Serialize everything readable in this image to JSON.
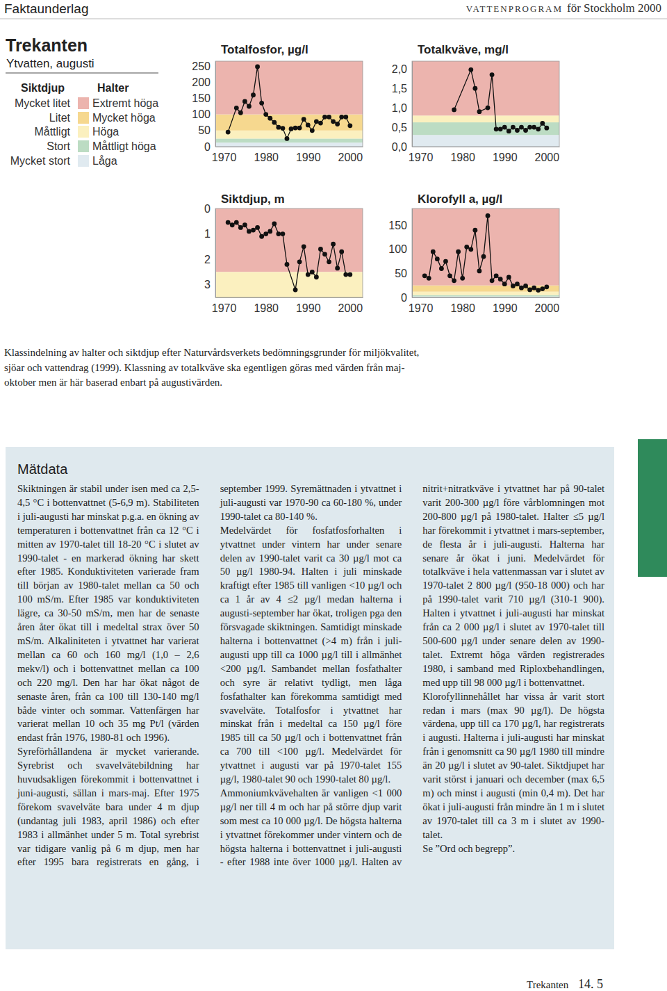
{
  "header": {
    "left": "Faktaunderlag",
    "right_caps": "VATTENPROGRAM",
    "right_rest": "för Stockholm 2000"
  },
  "title": "Trekanten",
  "subtitle": "Ytvatten, augusti",
  "legend": {
    "siktdjup_title": "Siktdjup",
    "halter_title": "Halter",
    "siktdjup": [
      "Mycket litet",
      "Litet",
      "Måttligt",
      "Stort",
      "Mycket stort"
    ],
    "halter": [
      "Extremt höga",
      "Mycket höga",
      "Höga",
      "Måttligt höga",
      "Låga"
    ],
    "colors": [
      "#ecb4ae",
      "#f6d88f",
      "#fbf0bf",
      "#bcdcc3",
      "#e0eaf0"
    ]
  },
  "chart_data": [
    {
      "type": "line",
      "title": "Totalfosfor, µg/l",
      "color": "#111111",
      "marker": "circle",
      "x": [
        1971,
        1973,
        1974,
        1975,
        1976,
        1977,
        1978,
        1979,
        1980,
        1981,
        1982,
        1983,
        1984,
        1985,
        1986,
        1987,
        1988,
        1989,
        1990,
        1991,
        1992,
        1993,
        1994,
        1995,
        1996,
        1997,
        1998,
        1999,
        2000
      ],
      "values": [
        45,
        120,
        105,
        140,
        125,
        160,
        248,
        135,
        100,
        88,
        75,
        60,
        57,
        25,
        55,
        58,
        58,
        85,
        67,
        50,
        78,
        73,
        92,
        92,
        78,
        70,
        92,
        92,
        65
      ],
      "xlim": [
        1968,
        2003
      ],
      "xticks": [
        1970,
        1980,
        1990,
        2000
      ],
      "ylim": [
        0,
        265
      ],
      "yticks": [
        0,
        50,
        100,
        150,
        200,
        250
      ],
      "band_limits": [
        12.5,
        25,
        50,
        100
      ],
      "band_colors": [
        "#e0eaf0",
        "#bcdcc3",
        "#fbf0bf",
        "#f6d88f",
        "#ecb4ae"
      ]
    },
    {
      "type": "line",
      "title": "Totalkväve, mg/l",
      "color": "#111111",
      "marker": "circle",
      "x": [
        1978,
        1982,
        1983,
        1984,
        1986,
        1987,
        1988,
        1989,
        1990,
        1991,
        1992,
        1993,
        1994,
        1995,
        1996,
        1997,
        1998,
        1999,
        2000
      ],
      "values": [
        0.95,
        1.98,
        1.5,
        0.9,
        1.0,
        1.85,
        0.45,
        0.45,
        0.5,
        0.4,
        0.5,
        0.42,
        0.5,
        0.42,
        0.5,
        0.5,
        0.45,
        0.6,
        0.48
      ],
      "xlim": [
        1968,
        2003
      ],
      "xticks": [
        1970,
        1980,
        1990,
        2000
      ],
      "ylim": [
        0,
        2.2
      ],
      "yticks": [
        {
          "value": 0,
          "label": "0,0"
        },
        {
          "value": 0.5,
          "label": "0,5"
        },
        {
          "value": 1,
          "label": "1,0"
        },
        {
          "value": 1.5,
          "label": "1,5"
        },
        {
          "value": 2,
          "label": "2,0"
        }
      ],
      "band_limits": [
        0.3,
        0.625,
        0.8
      ],
      "band_colors": [
        "#e0eaf0",
        "#bcdcc3",
        "#fbf0bf",
        "#ecb4ae"
      ]
    },
    {
      "type": "line",
      "title": "Siktdjup, m",
      "color": "#111111",
      "marker": "circle",
      "x": [
        1971,
        1972,
        1973,
        1974,
        1975,
        1976,
        1977,
        1978,
        1979,
        1980,
        1981,
        1982,
        1983,
        1984,
        1985,
        1987,
        1988,
        1989,
        1990,
        1991,
        1992,
        1993,
        1994,
        1995,
        1996,
        1997,
        1998,
        1999,
        2000
      ],
      "values": [
        0.55,
        0.65,
        0.55,
        0.75,
        0.65,
        0.9,
        0.85,
        0.75,
        1.1,
        1.0,
        0.9,
        0.6,
        1.0,
        1.0,
        2.2,
        3.2,
        2.1,
        1.5,
        2.6,
        2.5,
        2.7,
        1.6,
        1.8,
        2.1,
        1.4,
        2.35,
        1.7,
        2.6,
        2.6
      ],
      "xlim": [
        1968,
        2003
      ],
      "xticks": [
        1970,
        1980,
        1990,
        2000
      ],
      "ylim": [
        3.5,
        0
      ],
      "yticks": [
        0,
        1,
        2,
        3
      ],
      "band_limits": [
        2.5
      ],
      "band_colors": [
        "#ecb4ae",
        "#fbf0bf"
      ]
    },
    {
      "type": "line",
      "title": "Klorofyll a, µg/l",
      "color": "#111111",
      "marker": "circle",
      "x": [
        1971,
        1972,
        1973,
        1974,
        1975,
        1976,
        1977,
        1978,
        1979,
        1980,
        1981,
        1982,
        1983,
        1984,
        1985,
        1986,
        1987,
        1988,
        1989,
        1990,
        1991,
        1992,
        1993,
        1994,
        1995,
        1996,
        1997,
        1998,
        1999,
        2000
      ],
      "values": [
        45,
        40,
        95,
        80,
        60,
        75,
        45,
        35,
        95,
        40,
        105,
        100,
        140,
        55,
        85,
        170,
        35,
        45,
        38,
        28,
        42,
        24,
        28,
        20,
        24,
        16,
        20,
        15,
        18,
        22
      ],
      "xlim": [
        1968,
        2003
      ],
      "xticks": [
        1970,
        1980,
        1990,
        2000
      ],
      "ylim": [
        0,
        185
      ],
      "yticks": [
        0,
        50,
        100,
        150
      ],
      "band_limits": [
        2,
        5,
        12,
        25
      ],
      "band_colors": [
        "#e0eaf0",
        "#bcdcc3",
        "#fbf0bf",
        "#f6d88f",
        "#ecb4ae"
      ]
    }
  ],
  "caption": [
    "Klassindelning av halter och siktdjup efter Naturvårdsverkets bedömningsgrunder för miljökvalitet,",
    "sjöar och vattendrag (1999). Klassning av totalkväve ska egentligen göras med värden från maj-",
    "oktober men är här baserad enbart på augustivärden."
  ],
  "text": {
    "heading": "Mätdata",
    "paragraphs": [
      "Skiktningen är stabil under isen med ca 2,5-4,5 °C i bottenvattnet (5-6,9 m). Stabiliteten i juli-augusti har minskat p.g.a. en ökning av temperaturen i bottenvattnet från ca 12 °C i mitten av 1970-talet till 18-20 °C i slutet av 1990-talet - en markerad ökning har skett efter 1985. Konduktiviteten varierade fram till början av 1980-talet mellan ca 50 och 100 mS/m. Efter 1985 var konduktiviteten lägre, ca 30-50 mS/m, men har de senaste åren åter ökat till i medeltal strax över 50 mS/m. Alkaliniteten i ytvattnet har varierat mellan ca 60 och 160 mg/l (1,0 – 2,6 mekv/l) och i bottenvattnet mellan ca 100 och 220 mg/l. Den har har ökat något de senaste åren, från ca 100 till 130-140 mg/l både vinter och sommar. Vattenfärgen har varierat mellan 10 och 35 mg Pt/l (värden endast från 1976, 1980-81 och 1996).",
      "Syreförhållandena är mycket varierande. Syrebrist och svavelvätebildning har huvudsakligen förekommit i bottenvattnet i juni-augusti, sällan i mars-maj. Efter 1975 förekom svavelväte bara under 4 m djup (undantag juli 1983, april 1986) och efter 1983 i allmänhet under 5 m. Total syrebrist var tidigare vanlig på 6 m djup, men har efter 1995 bara registrerats en gång, i september 1999. Syremättnaden i ytvattnet i juli-augusti var 1970-90 ca 60-180 %, under 1990-talet ca 80-140 %.",
      "Medelvärdet för fosfatfosforhalten i ytvattnet under vintern har under senare delen av 1990-talet varit ca 30 µg/l mot ca 50 µg/l 1980-94. Halten i juli minskade kraftigt efter 1985 till vanligen <10 µg/l och ca 1 år av 4 ≤2 µg/l medan halterna i augusti-september har ökat, troligen pga den försvagade skiktningen. Samtidigt minskade halterna i bottenvattnet (>4 m) från i juli-augusti upp till ca 1000 µg/l till i allmänhet <200 µg/l. Sambandet mellan fosfathalter och syre är relativt tydligt, men låga fosfathalter kan förekomma samtidigt med svavelväte. Totalfosfor i ytvattnet har minskat från i medeltal ca 150 µg/l före 1985 till ca 50 µg/l och i bottenvattnet från ca 700 till <100 µg/l. Medelvärdet för ytvattnet i augusti var på 1970-talet 155 µg/l, 1980-talet 90 och 1990-talet 80 µg/l.",
      "Ammoniumkvävehalten är vanligen <1 000 µg/l ner till 4 m och har på större djup varit som mest ca 10 000 µg/l. De högsta halterna i ytvattnet förekommer under vintern och de högsta halterna i bottenvattnet i juli-augusti - efter 1988 inte över 1000 µg/l. Halten av nitrit+nitratkväve i ytvattnet har på 90-talet varit 200-300 µg/l före vårblomningen mot 200-800 µg/l på 1980-talet. Halter ≤5 µg/l har förekommit i ytvattnet i mars-september, de flesta år i juli-augusti. Halterna har senare år ökat i juni. Medelvärdet för totalkväve i hela vattenmassan var i slutet av 1970-talet 2 800 µg/l (950-18 000) och har på 1990-talet varit 710 µg/l (310-1 900). Halten i ytvattnet i juli-augusti har minskat från ca 2 000 µg/l i slutet av 1970-talet till 500-600 µg/l under senare delen av 1990-talet. Extremt höga värden registrerades 1980, i samband med Riploxbehandlingen, med upp till 98 000 µg/l i bottenvattnet.",
      "Klorofyllinnehållet har vissa år varit stort redan i mars (max 90 µg/l). De högsta värdena, upp till ca 170 µg/l, har registrerats i augusti. Halterna i juli-augusti har minskat från i genomsnitt ca 90 µg/l 1980 till mindre än 20 µg/l i slutet av 90-talet. Siktdjupet har varit störst i januari och december (max 6,5 m) och minst i augusti (min 0,4 m). Det har ökat i juli-augusti från mindre än 1 m i slutet av 1970-talet till ca 3 m i slutet av 1990-talet.",
      "Se ”Ord och begrepp”."
    ]
  },
  "footer": {
    "name": "Trekanten",
    "page": "14. 5"
  }
}
